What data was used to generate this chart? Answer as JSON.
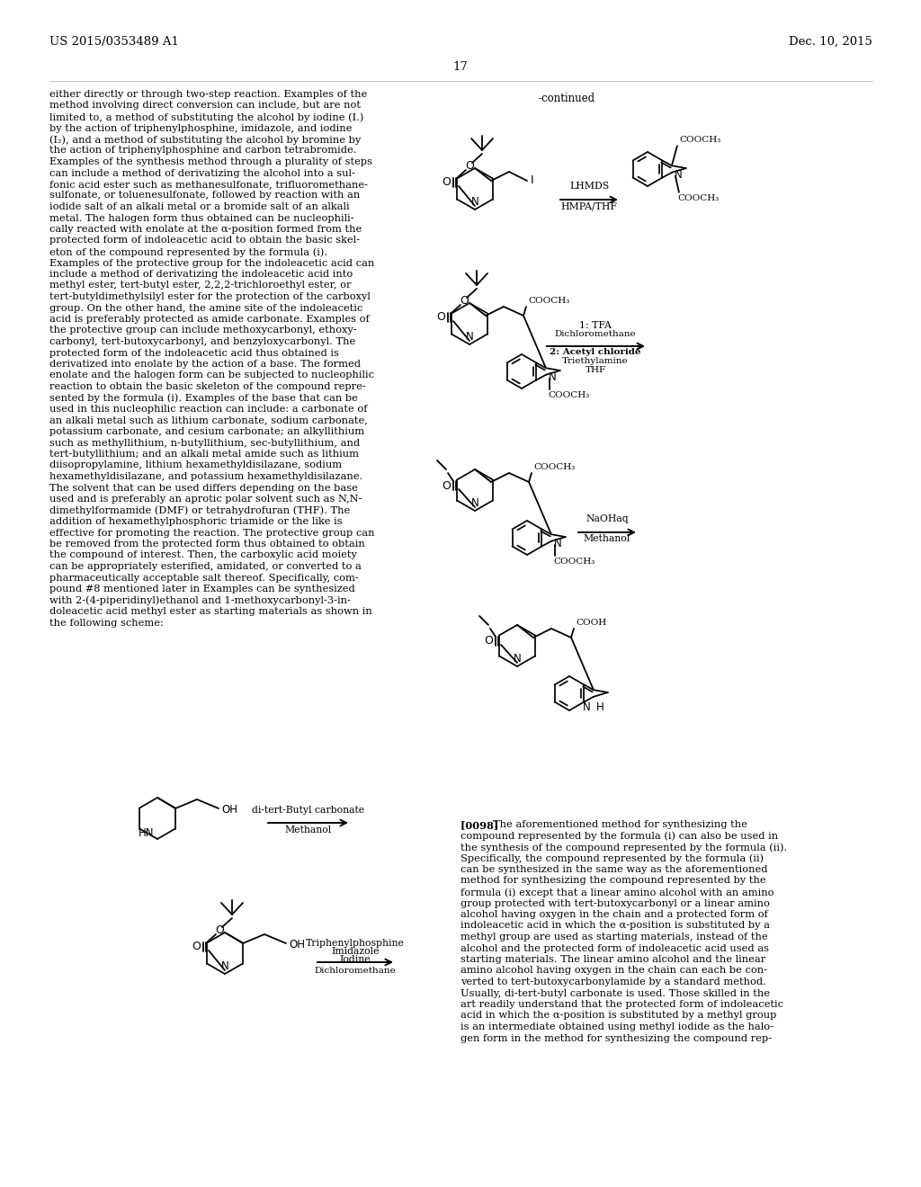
{
  "page_header_left": "US 2015/0353489 A1",
  "page_header_right": "Dec. 10, 2015",
  "page_number": "17",
  "bg": "#ffffff",
  "left_col_lines": [
    "either directly or through two-step reaction. Examples of the",
    "method involving direct conversion can include, but are not",
    "limited to, a method of substituting the alcohol by iodine (I.)",
    "by the action of triphenylphosphine, imidazole, and iodine",
    "(I₂), and a method of substituting the alcohol by bromine by",
    "the action of triphenylphosphine and carbon tetrabromide.",
    "Examples of the synthesis method through a plurality of steps",
    "can include a method of derivatizing the alcohol into a sul-",
    "fonic acid ester such as methanesulfonate, trifluoromethane-",
    "sulfonate, or toluenesulfonate, followed by reaction with an",
    "iodide salt of an alkali metal or a bromide salt of an alkali",
    "metal. The halogen form thus obtained can be nucleophili-",
    "cally reacted with enolate at the α-position formed from the",
    "protected form of indoleacetic acid to obtain the basic skel-",
    "eton of the compound represented by the formula (i).",
    "Examples of the protective group for the indoleacetic acid can",
    "include a method of derivatizing the indoleacetic acid into",
    "methyl ester, tert-butyl ester, 2,2,2-trichloroethyl ester, or",
    "tert-butyldimethylsilyl ester for the protection of the carboxyl",
    "group. On the other hand, the amine site of the indoleacetic",
    "acid is preferably protected as amide carbonate. Examples of",
    "the protective group can include methoxycarbonyl, ethoxy-",
    "carbonyl, tert-butoxycarbonyl, and benzyloxycarbonyl. The",
    "protected form of the indoleacetic acid thus obtained is",
    "derivatized into enolate by the action of a base. The formed",
    "enolate and the halogen form can be subjected to nucleophilic",
    "reaction to obtain the basic skeleton of the compound repre-",
    "sented by the formula (i). Examples of the base that can be",
    "used in this nucleophilic reaction can include: a carbonate of",
    "an alkali metal such as lithium carbonate, sodium carbonate,",
    "potassium carbonate, and cesium carbonate; an alkyllithium",
    "such as methyllithium, n-butyllithium, sec-butyllithium, and",
    "tert-butyllithium; and an alkali metal amide such as lithium",
    "diisopropylamine, lithium hexamethyldisilazane, sodium",
    "hexamethyldisilazane, and potassium hexamethyldisilazane.",
    "The solvent that can be used differs depending on the base",
    "used and is preferably an aprotic polar solvent such as N,N-",
    "dimethylformamide (DMF) or tetrahydrofuran (THF). The",
    "addition of hexamethylphosphoric triamide or the like is",
    "effective for promoting the reaction. The protective group can",
    "be removed from the protected form thus obtained to obtain",
    "the compound of interest. Then, the carboxylic acid moiety",
    "can be appropriately esterified, amidated, or converted to a",
    "pharmaceutically acceptable salt thereof. Specifically, com-",
    "pound #8 mentioned later in Examples can be synthesized",
    "with 2-(4-piperidinyl)ethanol and 1-methoxycarbonyl-3-in-",
    "doleacetic acid methyl ester as starting materials as shown in",
    "the following scheme:"
  ],
  "right_para_lines": [
    "[0098] The aforementioned method for synthesizing the",
    "compound represented by the formula (i) can also be used in",
    "the synthesis of the compound represented by the formula (ii).",
    "Specifically, the compound represented by the formula (ii)",
    "can be synthesized in the same way as the aforementioned",
    "method for synthesizing the compound represented by the",
    "formula (i) except that a linear amino alcohol with an amino",
    "group protected with tert-butoxycarbonyl or a linear amino",
    "alcohol having oxygen in the chain and a protected form of",
    "indoleacetic acid in which the α-position is substituted by a",
    "methyl group are used as starting materials, instead of the",
    "alcohol and the protected form of indoleacetic acid used as",
    "starting materials. The linear amino alcohol and the linear",
    "amino alcohol having oxygen in the chain can each be con-",
    "verted to tert-butoxycarbonylamide by a standard method.",
    "Usually, di-tert-butyl carbonate is used. Those skilled in the",
    "art readily understand that the protected form of indoleacetic",
    "acid in which the α-position is substituted by a methyl group",
    "is an intermediate obtained using methyl iodide as the halo-",
    "gen form in the method for synthesizing the compound rep-"
  ]
}
